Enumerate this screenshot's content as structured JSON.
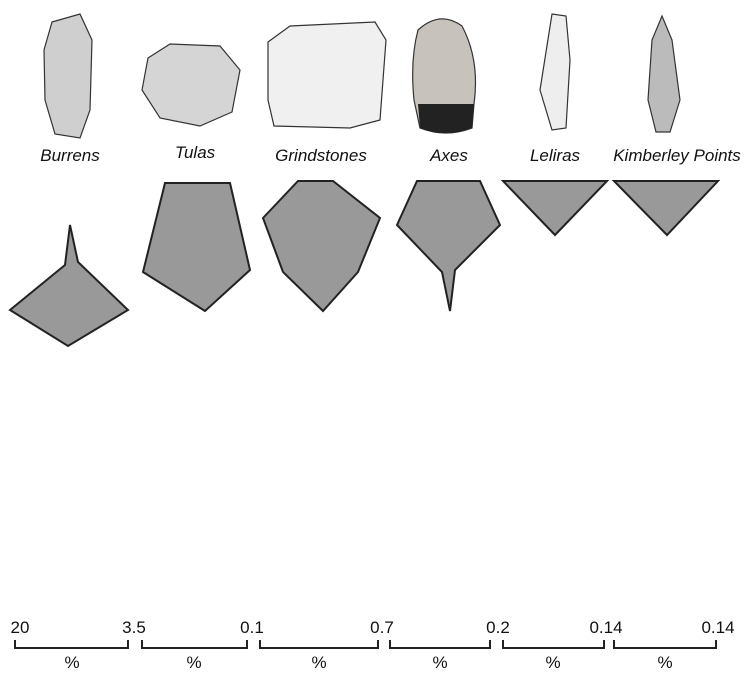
{
  "columns": [
    {
      "label": "Burrens",
      "unit": "%"
    },
    {
      "label": "Tulas",
      "unit": "%"
    },
    {
      "label": "Grindstones",
      "unit": "%"
    },
    {
      "label": "Axes",
      "unit": "%"
    },
    {
      "label": "Leliras",
      "unit": "%"
    },
    {
      "label": "Kimberley Points",
      "unit": "%"
    }
  ],
  "scale_labels": [
    20,
    3.5,
    0.1,
    0.7,
    0.2,
    0.14,
    0.14
  ]
}
